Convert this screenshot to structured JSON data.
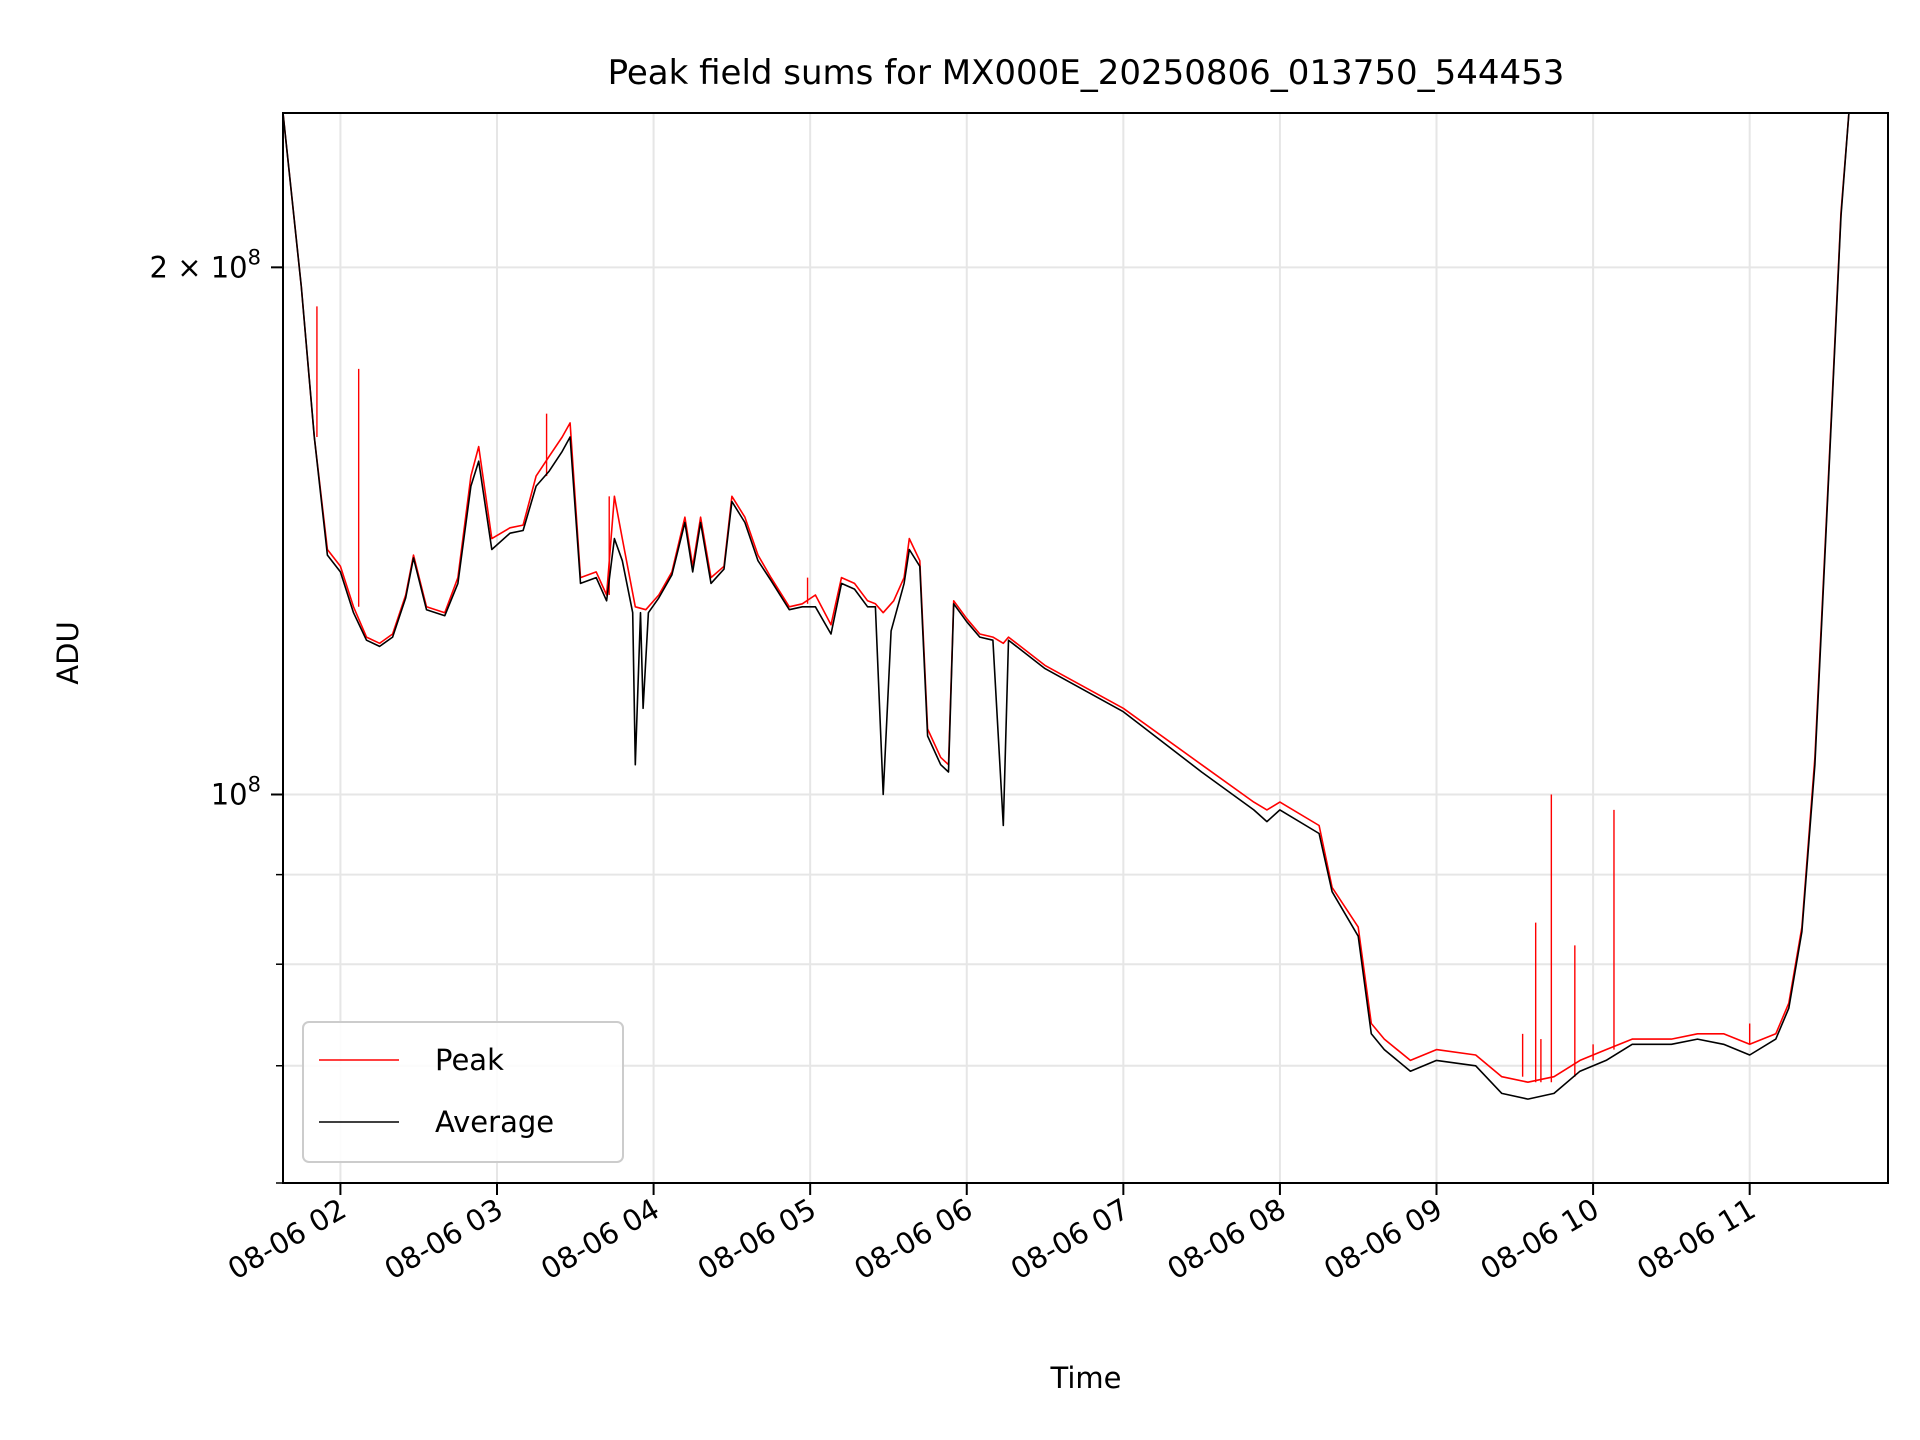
{
  "chart_data": {
    "type": "line",
    "title": "Peak field sums for MX000E_20250806_013750_544453",
    "xlabel": "Time",
    "ylabel": "ADU",
    "y_scale": "log",
    "ylim": [
      60000000,
      245000000
    ],
    "xlim": [
      "2025-08-06T01:38",
      "2025-08-06T11:53"
    ],
    "x_ticks": [
      {
        "t": "2025-08-06T02:00",
        "label": "08-06 02"
      },
      {
        "t": "2025-08-06T03:00",
        "label": "08-06 03"
      },
      {
        "t": "2025-08-06T04:00",
        "label": "08-06 04"
      },
      {
        "t": "2025-08-06T05:00",
        "label": "08-06 05"
      },
      {
        "t": "2025-08-06T06:00",
        "label": "08-06 06"
      },
      {
        "t": "2025-08-06T07:00",
        "label": "08-06 07"
      },
      {
        "t": "2025-08-06T08:00",
        "label": "08-06 08"
      },
      {
        "t": "2025-08-06T09:00",
        "label": "08-06 09"
      },
      {
        "t": "2025-08-06T10:00",
        "label": "08-06 10"
      },
      {
        "t": "2025-08-06T11:00",
        "label": "08-06 11"
      }
    ],
    "y_ticks_major": [
      {
        "v": 100000000,
        "base": "10",
        "exp": "8"
      },
      {
        "v": 200000000,
        "base": "2 × 10",
        "exp": "8"
      }
    ],
    "y_ticks_minor": [
      60000000,
      70000000,
      80000000,
      90000000
    ],
    "grid": true,
    "legend_position": "lower-left",
    "series": [
      {
        "name": "Peak",
        "color": "#ff0000",
        "points": [
          [
            "2025-08-06T01:38",
            245000000
          ],
          [
            "2025-08-06T01:45",
            195000000
          ],
          [
            "2025-08-06T01:50",
            160000000
          ],
          [
            "2025-08-06T01:55",
            138000000
          ],
          [
            "2025-08-06T02:00",
            135000000
          ],
          [
            "2025-08-06T02:05",
            128000000
          ],
          [
            "2025-08-06T02:10",
            123000000
          ],
          [
            "2025-08-06T02:15",
            122000000
          ],
          [
            "2025-08-06T02:20",
            123500000
          ],
          [
            "2025-08-06T02:25",
            130000000
          ],
          [
            "2025-08-06T02:28",
            137000000
          ],
          [
            "2025-08-06T02:33",
            128000000
          ],
          [
            "2025-08-06T02:40",
            127000000
          ],
          [
            "2025-08-06T02:45",
            133000000
          ],
          [
            "2025-08-06T02:50",
            152000000
          ],
          [
            "2025-08-06T02:53",
            158000000
          ],
          [
            "2025-08-06T02:58",
            140000000
          ],
          [
            "2025-08-06T03:05",
            142000000
          ],
          [
            "2025-08-06T03:10",
            142500000
          ],
          [
            "2025-08-06T03:15",
            152000000
          ],
          [
            "2025-08-06T03:20",
            156000000
          ],
          [
            "2025-08-06T03:25",
            160000000
          ],
          [
            "2025-08-06T03:28",
            163000000
          ],
          [
            "2025-08-06T03:32",
            133000000
          ],
          [
            "2025-08-06T03:38",
            134000000
          ],
          [
            "2025-08-06T03:42",
            130000000
          ],
          [
            "2025-08-06T03:45",
            148000000
          ],
          [
            "2025-08-06T03:48",
            140000000
          ],
          [
            "2025-08-06T03:53",
            128000000
          ],
          [
            "2025-08-06T03:57",
            127500000
          ],
          [
            "2025-08-06T04:02",
            130000000
          ],
          [
            "2025-08-06T04:07",
            134000000
          ],
          [
            "2025-08-06T04:12",
            144000000
          ],
          [
            "2025-08-06T04:15",
            135000000
          ],
          [
            "2025-08-06T04:18",
            144000000
          ],
          [
            "2025-08-06T04:22",
            133000000
          ],
          [
            "2025-08-06T04:27",
            135000000
          ],
          [
            "2025-08-06T04:30",
            148000000
          ],
          [
            "2025-08-06T04:35",
            144000000
          ],
          [
            "2025-08-06T04:40",
            137000000
          ],
          [
            "2025-08-06T04:45",
            133000000
          ],
          [
            "2025-08-06T04:52",
            128000000
          ],
          [
            "2025-08-06T04:57",
            128500000
          ],
          [
            "2025-08-06T05:02",
            130000000
          ],
          [
            "2025-08-06T05:08",
            125000000
          ],
          [
            "2025-08-06T05:12",
            133000000
          ],
          [
            "2025-08-06T05:17",
            132000000
          ],
          [
            "2025-08-06T05:22",
            129000000
          ],
          [
            "2025-08-06T05:25",
            128500000
          ],
          [
            "2025-08-06T05:28",
            127000000
          ],
          [
            "2025-08-06T05:32",
            129000000
          ],
          [
            "2025-08-06T05:36",
            133000000
          ],
          [
            "2025-08-06T05:38",
            140000000
          ],
          [
            "2025-08-06T05:42",
            136000000
          ],
          [
            "2025-08-06T05:45",
            109000000
          ],
          [
            "2025-08-06T05:50",
            105000000
          ],
          [
            "2025-08-06T05:53",
            104000000
          ],
          [
            "2025-08-06T05:55",
            129000000
          ],
          [
            "2025-08-06T06:00",
            126000000
          ],
          [
            "2025-08-06T06:05",
            123500000
          ],
          [
            "2025-08-06T06:10",
            123000000
          ],
          [
            "2025-08-06T06:14",
            122000000
          ],
          [
            "2025-08-06T06:16",
            123000000
          ],
          [
            "2025-08-06T06:30",
            118500000
          ],
          [
            "2025-08-06T07:00",
            112000000
          ],
          [
            "2025-08-06T07:30",
            104000000
          ],
          [
            "2025-08-06T07:50",
            99000000
          ],
          [
            "2025-08-06T07:55",
            98000000
          ],
          [
            "2025-08-06T08:00",
            99000000
          ],
          [
            "2025-08-06T08:15",
            96000000
          ],
          [
            "2025-08-06T08:20",
            88500000
          ],
          [
            "2025-08-06T08:30",
            84000000
          ],
          [
            "2025-08-06T08:35",
            74000000
          ],
          [
            "2025-08-06T08:40",
            72500000
          ],
          [
            "2025-08-06T08:50",
            70500000
          ],
          [
            "2025-08-06T09:00",
            71500000
          ],
          [
            "2025-08-06T09:15",
            71000000
          ],
          [
            "2025-08-06T09:25",
            69000000
          ],
          [
            "2025-08-06T09:35",
            68500000
          ],
          [
            "2025-08-06T09:45",
            69000000
          ],
          [
            "2025-08-06T09:55",
            70500000
          ],
          [
            "2025-08-06T10:05",
            71500000
          ],
          [
            "2025-08-06T10:15",
            72500000
          ],
          [
            "2025-08-06T10:30",
            72500000
          ],
          [
            "2025-08-06T10:40",
            73000000
          ],
          [
            "2025-08-06T10:50",
            73000000
          ],
          [
            "2025-08-06T11:00",
            72000000
          ],
          [
            "2025-08-06T11:10",
            73000000
          ],
          [
            "2025-08-06T11:15",
            76000000
          ],
          [
            "2025-08-06T11:20",
            84000000
          ],
          [
            "2025-08-06T11:25",
            105000000
          ],
          [
            "2025-08-06T11:30",
            150000000
          ],
          [
            "2025-08-06T11:35",
            215000000
          ],
          [
            "2025-08-06T11:38",
            245000000
          ]
        ],
        "spikes": [
          [
            "2025-08-06T01:51",
            190000000
          ],
          [
            "2025-08-06T02:07",
            175000000
          ],
          [
            "2025-08-06T03:19",
            165000000
          ],
          [
            "2025-08-06T03:43",
            148000000
          ],
          [
            "2025-08-06T04:59",
            133000000
          ],
          [
            "2025-08-06T09:38",
            84500000
          ],
          [
            "2025-08-06T09:44",
            100000000
          ],
          [
            "2025-08-06T09:53",
            82000000
          ],
          [
            "2025-08-06T10:08",
            98000000
          ],
          [
            "2025-08-06T09:33",
            73000000
          ],
          [
            "2025-08-06T09:40",
            72500000
          ],
          [
            "2025-08-06T10:00",
            72000000
          ],
          [
            "2025-08-06T11:00",
            74000000
          ]
        ]
      },
      {
        "name": "Average",
        "color": "#000000",
        "points": [
          [
            "2025-08-06T01:38",
            245000000
          ],
          [
            "2025-08-06T01:45",
            195000000
          ],
          [
            "2025-08-06T01:50",
            160000000
          ],
          [
            "2025-08-06T01:55",
            137000000
          ],
          [
            "2025-08-06T02:00",
            134000000
          ],
          [
            "2025-08-06T02:05",
            127000000
          ],
          [
            "2025-08-06T02:10",
            122500000
          ],
          [
            "2025-08-06T02:15",
            121500000
          ],
          [
            "2025-08-06T02:20",
            123000000
          ],
          [
            "2025-08-06T02:25",
            129500000
          ],
          [
            "2025-08-06T02:28",
            136500000
          ],
          [
            "2025-08-06T02:33",
            127500000
          ],
          [
            "2025-08-06T02:40",
            126500000
          ],
          [
            "2025-08-06T02:45",
            132000000
          ],
          [
            "2025-08-06T02:50",
            150000000
          ],
          [
            "2025-08-06T02:53",
            155000000
          ],
          [
            "2025-08-06T02:58",
            138000000
          ],
          [
            "2025-08-06T03:05",
            141000000
          ],
          [
            "2025-08-06T03:10",
            141500000
          ],
          [
            "2025-08-06T03:15",
            150000000
          ],
          [
            "2025-08-06T03:20",
            153000000
          ],
          [
            "2025-08-06T03:25",
            157000000
          ],
          [
            "2025-08-06T03:28",
            160000000
          ],
          [
            "2025-08-06T03:32",
            132000000
          ],
          [
            "2025-08-06T03:38",
            133000000
          ],
          [
            "2025-08-06T03:42",
            129000000
          ],
          [
            "2025-08-06T03:45",
            140000000
          ],
          [
            "2025-08-06T03:48",
            136000000
          ],
          [
            "2025-08-06T03:52",
            127000000
          ],
          [
            "2025-08-06T03:53",
            104000000
          ],
          [
            "2025-08-06T03:55",
            127000000
          ],
          [
            "2025-08-06T03:56",
            112000000
          ],
          [
            "2025-08-06T03:58",
            127000000
          ],
          [
            "2025-08-06T04:02",
            129500000
          ],
          [
            "2025-08-06T04:07",
            133500000
          ],
          [
            "2025-08-06T04:12",
            143000000
          ],
          [
            "2025-08-06T04:15",
            134000000
          ],
          [
            "2025-08-06T04:18",
            143000000
          ],
          [
            "2025-08-06T04:22",
            132000000
          ],
          [
            "2025-08-06T04:27",
            134500000
          ],
          [
            "2025-08-06T04:30",
            147000000
          ],
          [
            "2025-08-06T04:35",
            143000000
          ],
          [
            "2025-08-06T04:40",
            136000000
          ],
          [
            "2025-08-06T04:45",
            132500000
          ],
          [
            "2025-08-06T04:52",
            127500000
          ],
          [
            "2025-08-06T04:57",
            128000000
          ],
          [
            "2025-08-06T05:02",
            128000000
          ],
          [
            "2025-08-06T05:08",
            123500000
          ],
          [
            "2025-08-06T05:12",
            132000000
          ],
          [
            "2025-08-06T05:17",
            131000000
          ],
          [
            "2025-08-06T05:22",
            128000000
          ],
          [
            "2025-08-06T05:25",
            128000000
          ],
          [
            "2025-08-06T05:28",
            100000000
          ],
          [
            "2025-08-06T05:31",
            124000000
          ],
          [
            "2025-08-06T05:36",
            132000000
          ],
          [
            "2025-08-06T05:38",
            138000000
          ],
          [
            "2025-08-06T05:42",
            135000000
          ],
          [
            "2025-08-06T05:45",
            108000000
          ],
          [
            "2025-08-06T05:50",
            104000000
          ],
          [
            "2025-08-06T05:53",
            103000000
          ],
          [
            "2025-08-06T05:55",
            128500000
          ],
          [
            "2025-08-06T06:00",
            125500000
          ],
          [
            "2025-08-06T06:05",
            123000000
          ],
          [
            "2025-08-06T06:10",
            122500000
          ],
          [
            "2025-08-06T06:14",
            96000000
          ],
          [
            "2025-08-06T06:16",
            122500000
          ],
          [
            "2025-08-06T06:30",
            118000000
          ],
          [
            "2025-08-06T07:00",
            111500000
          ],
          [
            "2025-08-06T07:30",
            103000000
          ],
          [
            "2025-08-06T07:50",
            98000000
          ],
          [
            "2025-08-06T07:55",
            96500000
          ],
          [
            "2025-08-06T08:00",
            98000000
          ],
          [
            "2025-08-06T08:15",
            95000000
          ],
          [
            "2025-08-06T08:20",
            88000000
          ],
          [
            "2025-08-06T08:30",
            83000000
          ],
          [
            "2025-08-06T08:35",
            73000000
          ],
          [
            "2025-08-06T08:40",
            71500000
          ],
          [
            "2025-08-06T08:50",
            69500000
          ],
          [
            "2025-08-06T09:00",
            70500000
          ],
          [
            "2025-08-06T09:15",
            70000000
          ],
          [
            "2025-08-06T09:25",
            67500000
          ],
          [
            "2025-08-06T09:35",
            67000000
          ],
          [
            "2025-08-06T09:45",
            67500000
          ],
          [
            "2025-08-06T09:55",
            69500000
          ],
          [
            "2025-08-06T10:05",
            70500000
          ],
          [
            "2025-08-06T10:15",
            72000000
          ],
          [
            "2025-08-06T10:30",
            72000000
          ],
          [
            "2025-08-06T10:40",
            72500000
          ],
          [
            "2025-08-06T10:50",
            72000000
          ],
          [
            "2025-08-06T11:00",
            71000000
          ],
          [
            "2025-08-06T11:10",
            72500000
          ],
          [
            "2025-08-06T11:15",
            75500000
          ],
          [
            "2025-08-06T11:20",
            83500000
          ],
          [
            "2025-08-06T11:25",
            104000000
          ],
          [
            "2025-08-06T11:30",
            149000000
          ],
          [
            "2025-08-06T11:35",
            214000000
          ],
          [
            "2025-08-06T11:38",
            245000000
          ]
        ]
      }
    ]
  }
}
